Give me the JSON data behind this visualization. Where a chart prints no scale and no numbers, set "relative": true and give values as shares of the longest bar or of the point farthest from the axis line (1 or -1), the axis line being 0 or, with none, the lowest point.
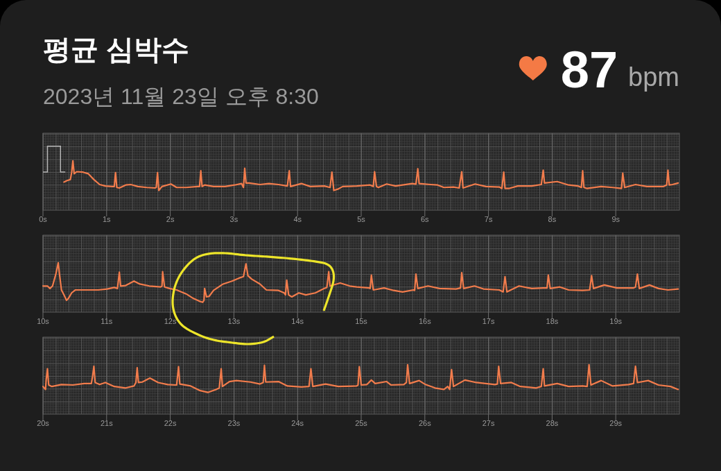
{
  "chart_data": [
    {
      "type": "other",
      "title": "평균 심박수",
      "subtitle": "2023년 11월 23일 오후 8:30",
      "annotations": [
        "87",
        "bpm"
      ]
    },
    {
      "type": "line",
      "relative": true,
      "grid": true,
      "tick_labels": "x",
      "xlim": [
        0,
        10
      ],
      "xticks": [
        {
          "value": 0,
          "label": "0s"
        },
        {
          "value": 1,
          "label": "1s"
        },
        {
          "value": 2,
          "label": "2s"
        },
        {
          "value": 3,
          "label": "3s"
        },
        {
          "value": 4,
          "label": "4s"
        },
        {
          "value": 5,
          "label": "5s"
        },
        {
          "value": 6,
          "label": "6s"
        },
        {
          "value": 7,
          "label": "7s"
        },
        {
          "value": 8,
          "label": "8s"
        },
        {
          "value": 9,
          "label": "9s"
        }
      ],
      "x": [
        0.33,
        0.38,
        0.43,
        0.45,
        0.47,
        0.49,
        0.53,
        0.63,
        0.71,
        0.8,
        0.89,
        0.98,
        1.09,
        1.12,
        1.14,
        1.16,
        1.2,
        1.3,
        1.38,
        1.49,
        1.63,
        1.76,
        1.78,
        1.8,
        1.82,
        1.87,
        2.01,
        2.1,
        2.25,
        2.43,
        2.46,
        2.48,
        2.5,
        2.54,
        2.68,
        2.86,
        3.01,
        3.12,
        3.15,
        3.17,
        3.19,
        3.24,
        3.41,
        3.55,
        3.7,
        3.84,
        3.87,
        3.89,
        4.06,
        4.2,
        4.42,
        4.51,
        4.54,
        4.57,
        4.64,
        4.71,
        4.93,
        5.14,
        5.19,
        5.21,
        5.24,
        5.27,
        5.4,
        5.54,
        5.8,
        5.86,
        5.89,
        5.91,
        6.09,
        6.2,
        6.3,
        6.45,
        6.54,
        6.58,
        6.6,
        6.79,
        6.96,
        7.17,
        7.21,
        7.24,
        7.26,
        7.32,
        7.46,
        7.68,
        7.83,
        7.86,
        7.88,
        8.08,
        8.26,
        8.41,
        8.46,
        8.48,
        8.5,
        8.55,
        8.77,
        8.95,
        9.09,
        9.11,
        9.14,
        9.31,
        9.49,
        9.75,
        9.8,
        9.82,
        9.84,
        9.89,
        9.98
      ],
      "series": [
        {
          "color": "#f27c4c",
          "values": [
            0.57,
            0.6,
            0.62,
            0.76,
            1.0,
            0.74,
            0.78,
            0.77,
            0.74,
            0.62,
            0.52,
            0.49,
            0.48,
            0.48,
            0.76,
            0.46,
            0.45,
            0.51,
            0.52,
            0.48,
            0.46,
            0.45,
            0.46,
            0.76,
            0.4,
            0.48,
            0.53,
            0.46,
            0.46,
            0.48,
            0.48,
            0.8,
            0.48,
            0.51,
            0.48,
            0.48,
            0.51,
            0.54,
            0.46,
            0.85,
            0.55,
            0.55,
            0.52,
            0.54,
            0.52,
            0.49,
            0.8,
            0.48,
            0.54,
            0.48,
            0.49,
            0.46,
            0.77,
            0.4,
            0.43,
            0.48,
            0.49,
            0.51,
            0.48,
            0.78,
            0.48,
            0.46,
            0.53,
            0.49,
            0.54,
            0.53,
            0.84,
            0.54,
            0.52,
            0.51,
            0.46,
            0.47,
            0.45,
            0.78,
            0.45,
            0.53,
            0.48,
            0.47,
            0.44,
            0.77,
            0.44,
            0.44,
            0.49,
            0.49,
            0.52,
            0.81,
            0.55,
            0.58,
            0.51,
            0.49,
            0.46,
            0.8,
            0.46,
            0.44,
            0.48,
            0.46,
            0.44,
            0.75,
            0.46,
            0.52,
            0.48,
            0.48,
            0.51,
            0.81,
            0.51,
            0.52,
            0.55
          ]
        }
      ]
    },
    {
      "type": "line",
      "relative": true,
      "grid": true,
      "tick_labels": "x",
      "xlim": [
        10,
        20
      ],
      "xticks": [
        {
          "value": 10,
          "label": "10s"
        },
        {
          "value": 11,
          "label": "11s"
        },
        {
          "value": 12,
          "label": "12s"
        },
        {
          "value": 13,
          "label": "13s"
        },
        {
          "value": 14,
          "label": "14s"
        },
        {
          "value": 15,
          "label": "15s"
        },
        {
          "value": 16,
          "label": "16s"
        },
        {
          "value": 17,
          "label": "17s"
        },
        {
          "value": 18,
          "label": "18s"
        },
        {
          "value": 19,
          "label": "19s"
        }
      ],
      "x": [
        10.0,
        10.07,
        10.11,
        10.15,
        10.2,
        10.24,
        10.26,
        10.29,
        10.33,
        10.37,
        10.4,
        10.45,
        10.51,
        10.65,
        10.87,
        11.01,
        11.12,
        11.17,
        11.2,
        11.22,
        11.3,
        11.43,
        11.52,
        11.67,
        11.85,
        11.87,
        11.88,
        11.91,
        11.99,
        12.1,
        12.25,
        12.36,
        12.46,
        12.51,
        12.53,
        12.54,
        12.57,
        12.61,
        12.68,
        12.83,
        12.97,
        13.08,
        13.15,
        13.19,
        13.22,
        13.28,
        13.41,
        13.51,
        13.7,
        13.79,
        13.81,
        13.83,
        13.86,
        13.91,
        14.02,
        14.13,
        14.28,
        14.42,
        14.46,
        14.49,
        14.51,
        14.67,
        14.82,
        14.93,
        15.13,
        15.14,
        15.16,
        15.19,
        15.36,
        15.51,
        15.65,
        15.82,
        15.84,
        15.86,
        15.89,
        16.05,
        16.23,
        16.49,
        16.56,
        16.58,
        16.61,
        16.78,
        16.92,
        17.17,
        17.23,
        17.26,
        17.29,
        17.48,
        17.68,
        17.86,
        17.92,
        17.94,
        17.97,
        18.12,
        18.26,
        18.48,
        18.59,
        18.62,
        18.65,
        18.82,
        19.02,
        19.28,
        19.31,
        19.34,
        19.37,
        19.53,
        19.67,
        19.82,
        19.98
      ],
      "series": [
        {
          "color": "#f27c4c",
          "values": [
            0.53,
            0.53,
            0.48,
            0.53,
            0.76,
            1.0,
            0.76,
            0.45,
            0.35,
            0.24,
            0.28,
            0.39,
            0.45,
            0.45,
            0.45,
            0.47,
            0.5,
            0.48,
            0.81,
            0.53,
            0.54,
            0.63,
            0.57,
            0.53,
            0.51,
            0.53,
            0.82,
            0.51,
            0.48,
            0.45,
            0.37,
            0.28,
            0.22,
            0.2,
            0.24,
            0.48,
            0.31,
            0.32,
            0.44,
            0.57,
            0.63,
            0.69,
            0.72,
            0.98,
            0.74,
            0.67,
            0.57,
            0.45,
            0.44,
            0.39,
            0.35,
            0.65,
            0.35,
            0.31,
            0.39,
            0.35,
            0.39,
            0.48,
            0.5,
            0.82,
            0.53,
            0.59,
            0.53,
            0.51,
            0.49,
            0.48,
            0.75,
            0.45,
            0.49,
            0.44,
            0.41,
            0.45,
            0.44,
            0.77,
            0.48,
            0.53,
            0.48,
            0.47,
            0.49,
            0.8,
            0.48,
            0.53,
            0.47,
            0.45,
            0.41,
            0.72,
            0.41,
            0.53,
            0.48,
            0.49,
            0.49,
            0.75,
            0.48,
            0.51,
            0.45,
            0.44,
            0.45,
            0.74,
            0.48,
            0.55,
            0.49,
            0.49,
            0.51,
            0.77,
            0.48,
            0.55,
            0.48,
            0.45,
            0.47
          ]
        }
      ]
    },
    {
      "type": "line",
      "relative": true,
      "grid": true,
      "tick_labels": "x",
      "xlim": [
        20,
        30
      ],
      "xticks": [
        {
          "value": 20,
          "label": "20s"
        },
        {
          "value": 21,
          "label": "21s"
        },
        {
          "value": 22,
          "label": "22s"
        },
        {
          "value": 23,
          "label": "23s"
        },
        {
          "value": 24,
          "label": "24s"
        },
        {
          "value": 25,
          "label": "25s"
        },
        {
          "value": 26,
          "label": "26s"
        },
        {
          "value": 27,
          "label": "27s"
        },
        {
          "value": 28,
          "label": "28s"
        },
        {
          "value": 29,
          "label": "29s"
        }
      ],
      "x": [
        20.0,
        20.04,
        20.05,
        20.07,
        20.09,
        20.14,
        20.29,
        20.47,
        20.65,
        20.76,
        20.78,
        20.8,
        20.82,
        20.89,
        20.98,
        21.12,
        21.3,
        21.43,
        21.46,
        21.48,
        21.5,
        21.56,
        21.68,
        21.81,
        21.96,
        22.07,
        22.1,
        22.13,
        22.15,
        22.32,
        22.46,
        22.59,
        22.72,
        22.77,
        22.8,
        22.82,
        22.93,
        23.04,
        23.26,
        23.41,
        23.46,
        23.48,
        23.5,
        23.7,
        23.84,
        24.06,
        24.18,
        24.21,
        24.24,
        24.44,
        24.64,
        24.93,
        24.95,
        24.97,
        25.0,
        25.09,
        25.16,
        25.22,
        25.4,
        25.47,
        25.67,
        25.71,
        25.73,
        25.76,
        25.91,
        26.01,
        26.16,
        26.3,
        26.36,
        26.39,
        26.42,
        26.45,
        26.63,
        26.81,
        27.1,
        27.14,
        27.16,
        27.19,
        27.36,
        27.5,
        27.75,
        27.83,
        27.86,
        27.88,
        28.08,
        28.26,
        28.48,
        28.55,
        28.58,
        28.61,
        28.77,
        28.95,
        29.2,
        29.28,
        29.31,
        29.34,
        29.51,
        29.67,
        29.86,
        29.98
      ],
      "series": [
        {
          "color": "#f27c4c",
          "values": [
            0.56,
            0.5,
            0.69,
            0.92,
            0.59,
            0.56,
            0.6,
            0.59,
            0.62,
            0.62,
            0.77,
            0.97,
            0.64,
            0.6,
            0.64,
            0.56,
            0.53,
            0.57,
            0.64,
            0.94,
            0.64,
            0.65,
            0.73,
            0.64,
            0.6,
            0.59,
            0.59,
            0.96,
            0.61,
            0.57,
            0.48,
            0.44,
            0.5,
            0.53,
            0.92,
            0.56,
            0.66,
            0.68,
            0.65,
            0.61,
            0.64,
            0.99,
            0.65,
            0.66,
            0.57,
            0.55,
            0.56,
            0.92,
            0.56,
            0.61,
            0.56,
            0.57,
            0.59,
            0.96,
            0.59,
            0.6,
            0.69,
            0.62,
            0.66,
            0.59,
            0.6,
            0.64,
            1.0,
            0.62,
            0.68,
            0.6,
            0.53,
            0.5,
            0.56,
            0.5,
            0.9,
            0.56,
            0.69,
            0.64,
            0.6,
            0.61,
            0.97,
            0.62,
            0.64,
            0.56,
            0.53,
            0.56,
            0.92,
            0.57,
            0.62,
            0.56,
            0.57,
            0.56,
            1.0,
            0.59,
            0.68,
            0.57,
            0.6,
            0.62,
            0.97,
            0.64,
            0.68,
            0.59,
            0.56,
            0.5
          ]
        }
      ]
    }
  ]
}
